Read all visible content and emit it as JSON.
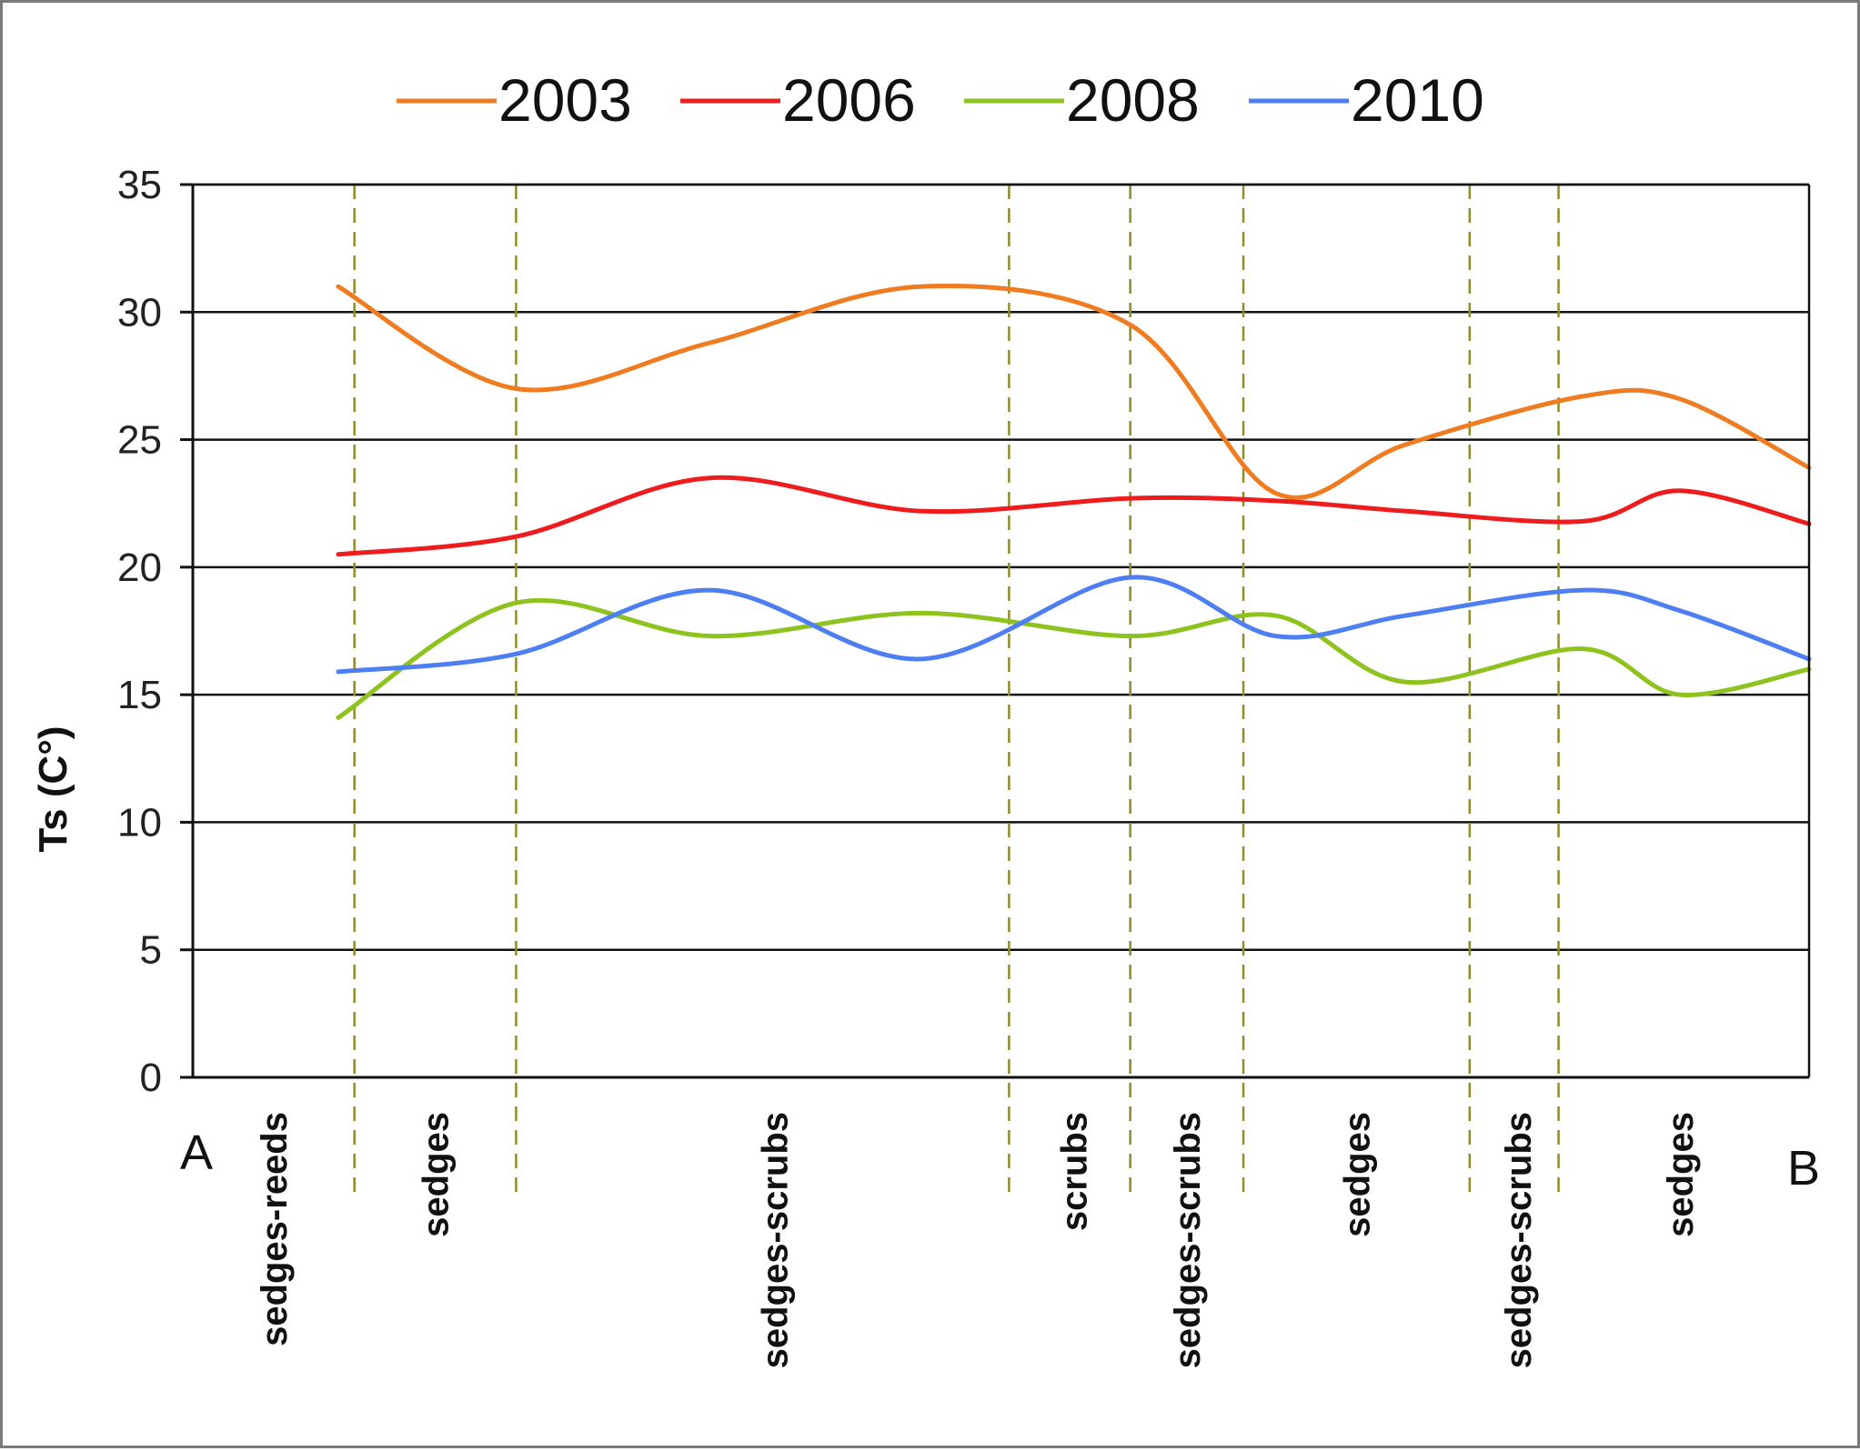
{
  "chart_data": {
    "type": "line",
    "title": "",
    "xlabel": "",
    "ylabel": "Ts (C°)",
    "ylim": [
      0,
      35
    ],
    "yticks": [
      0,
      5,
      10,
      15,
      20,
      25,
      30,
      35
    ],
    "grid": true,
    "legend_position": "top",
    "xlim": [
      0,
      100
    ],
    "x": [
      9,
      20,
      32,
      45,
      58,
      67,
      75,
      86,
      92,
      100
    ],
    "series": [
      {
        "name": "2003",
        "color": "#f07c22",
        "values": [
          31,
          27,
          28.8,
          31,
          29.5,
          22.9,
          24.8,
          26.7,
          26.6,
          23.9
        ]
      },
      {
        "name": "2006",
        "color": "#ee1c1c",
        "values": [
          20.5,
          21.2,
          23.5,
          22.2,
          22.7,
          22.6,
          22.2,
          21.8,
          23,
          21.7
        ]
      },
      {
        "name": "2008",
        "color": "#8dc21f",
        "values": [
          14.1,
          18.6,
          17.3,
          18.2,
          17.3,
          18.1,
          15.5,
          16.8,
          15,
          16
        ]
      },
      {
        "name": "2010",
        "color": "#4d7ef2",
        "values": [
          15.9,
          16.6,
          19.1,
          16.4,
          19.6,
          17.3,
          18.1,
          19.1,
          18.3,
          16.4
        ]
      }
    ],
    "zone_boundaries": [
      10,
      20,
      50.5,
      58,
      65,
      79,
      84.5
    ],
    "zones": [
      {
        "label": "sedges-reeds",
        "center": 5
      },
      {
        "label": "sedges",
        "center": 15
      },
      {
        "label": "sedges-scrubs",
        "center": 36
      },
      {
        "label": "scrubs",
        "center": 54.5
      },
      {
        "label": "sedges-scrubs",
        "center": 61.5
      },
      {
        "label": "sedges",
        "center": 72
      },
      {
        "label": "sedges-scrubs",
        "center": 82
      },
      {
        "label": "sedges",
        "center": 92
      }
    ],
    "endpoint_labels": {
      "start": "A",
      "end": "B"
    }
  }
}
